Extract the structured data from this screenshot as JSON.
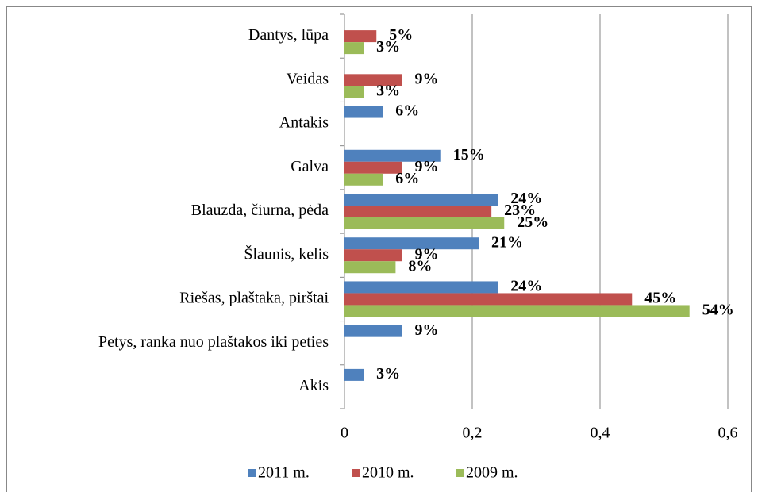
{
  "chart_data": {
    "type": "bar",
    "orientation": "horizontal",
    "categories": [
      "Dantys, lūpa",
      "Veidas",
      "Antakis",
      "Galva",
      "Blauzda, čiurna, pėda",
      "Šlaunis, kelis",
      "Riešas, plaštaka, pirštai",
      "Petys, ranka nuo plaštakos iki peties",
      "Akis"
    ],
    "series": [
      {
        "name": "2011 m.",
        "color": "#4f81bd",
        "values": [
          null,
          null,
          0.06,
          0.15,
          0.24,
          0.21,
          0.24,
          0.09,
          0.03
        ],
        "value_labels": [
          null,
          null,
          "6%",
          "15%",
          "24%",
          "21%",
          "24%",
          "9%",
          "3%"
        ]
      },
      {
        "name": "2010 m.",
        "color": "#c0504d",
        "values": [
          0.05,
          0.09,
          null,
          0.09,
          0.23,
          0.09,
          0.45,
          null,
          null
        ],
        "value_labels": [
          "5%",
          "9%",
          null,
          "9%",
          "23%",
          "9%",
          "45%",
          null,
          null
        ]
      },
      {
        "name": "2009 m.",
        "color": "#9bbb59",
        "values": [
          0.03,
          0.03,
          null,
          0.06,
          0.25,
          0.08,
          0.54,
          null,
          null
        ],
        "value_labels": [
          "3%",
          "3%",
          null,
          "6%",
          "25%",
          "8%",
          "54%",
          null,
          null
        ]
      }
    ],
    "xlim": [
      0,
      0.6
    ],
    "xticks": [
      0,
      {
        "value": 0.2,
        "label": "0,2"
      },
      {
        "value": 0.4,
        "label": "0,4"
      },
      {
        "value": 0.6,
        "label": "0,6"
      }
    ],
    "grid": true,
    "legend": "bottom"
  }
}
